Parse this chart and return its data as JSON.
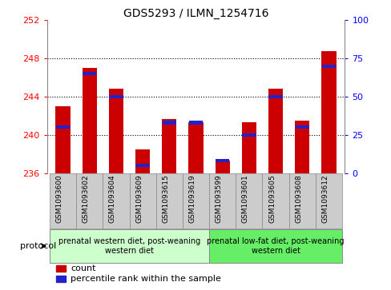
{
  "title": "GDS5293 / ILMN_1254716",
  "samples": [
    "GSM1093600",
    "GSM1093602",
    "GSM1093604",
    "GSM1093609",
    "GSM1093615",
    "GSM1093619",
    "GSM1093599",
    "GSM1093601",
    "GSM1093605",
    "GSM1093608",
    "GSM1093612"
  ],
  "counts": [
    243.0,
    247.0,
    244.8,
    238.5,
    241.7,
    241.3,
    237.3,
    241.3,
    244.8,
    241.5,
    248.8
  ],
  "percentiles": [
    30,
    65,
    50,
    5,
    33,
    33,
    8,
    25,
    50,
    30,
    70
  ],
  "y_min": 236,
  "y_max": 252,
  "y_ticks": [
    236,
    240,
    244,
    248,
    252
  ],
  "y2_ticks": [
    0,
    25,
    50,
    75,
    100
  ],
  "bar_color": "#cc0000",
  "percentile_color": "#2222cc",
  "group1_label": "prenatal western diet, post-weaning\nwestern diet",
  "group2_label": "prenatal low-fat diet, post-weaning\nwestern diet",
  "group1_color": "#ccffcc",
  "group2_color": "#66ee66",
  "protocol_label": "protocol",
  "legend_count": "count",
  "legend_percentile": "percentile rank within the sample",
  "n_group1": 6,
  "n_group2": 5,
  "bar_width": 0.55,
  "xlabel_bg_color": "#cccccc",
  "xlabel_edge_color": "#888888"
}
